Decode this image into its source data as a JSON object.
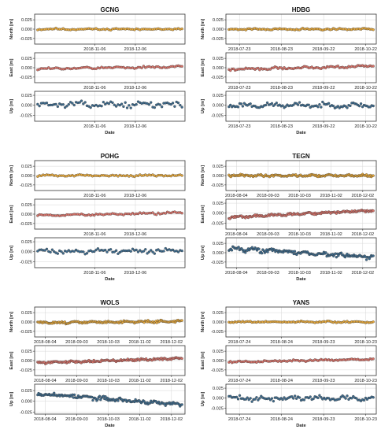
{
  "colors": {
    "north": "#e8a93a",
    "east": "#d9736a",
    "up": "#3d6b8e"
  },
  "chart_data": [
    {
      "type": "scatter",
      "title": "GCNG",
      "xlabel": "Date",
      "x_ticks": [
        "2018-11-06",
        "2018-12-06"
      ],
      "x_tick_pos": [
        0.4,
        0.67
      ],
      "panels": [
        {
          "component": "north",
          "ylabel": "North [m]",
          "ylim": [
            -0.04,
            0.04
          ],
          "yticks": [
            "0.025",
            "0.000",
            "-0.025"
          ],
          "ytick_values": [
            0.025,
            0,
            -0.025
          ],
          "series": [
            {
              "n": 80,
              "mean": 0.0,
              "amp": 0.003,
              "trend": 0.0,
              "seed": 11
            }
          ]
        },
        {
          "component": "east",
          "ylabel": "East [m]",
          "ylim": [
            -0.04,
            0.04
          ],
          "yticks": [
            "0.025",
            "0.000",
            "-0.025"
          ],
          "ytick_values": [
            0.025,
            0,
            -0.025
          ],
          "series": [
            {
              "n": 80,
              "mean": 0.0,
              "amp": 0.004,
              "trend": 0.006,
              "seed": 12
            }
          ]
        },
        {
          "component": "up",
          "ylabel": "Up [m]",
          "ylim": [
            -0.04,
            0.035
          ],
          "yticks": [
            "0.025",
            "0.000",
            "-0.025"
          ],
          "ytick_values": [
            0.025,
            0,
            -0.025
          ],
          "series": [
            {
              "n": 80,
              "mean": 0.002,
              "amp": 0.009,
              "trend": 0.0,
              "seed": 13
            }
          ]
        }
      ]
    },
    {
      "type": "scatter",
      "title": "HDBG",
      "xlabel": "Date",
      "x_ticks": [
        "2018-07-23",
        "2018-08-23",
        "2018-09-22",
        "2018-10-22"
      ],
      "x_tick_pos": [
        0.09,
        0.37,
        0.65,
        0.93
      ],
      "panels": [
        {
          "component": "north",
          "ylabel": "North [m]",
          "ylim": [
            -0.04,
            0.04
          ],
          "yticks": [
            "0.025",
            "0.000",
            "-0.025"
          ],
          "ytick_values": [
            0.025,
            0,
            -0.025
          ],
          "series": [
            {
              "n": 95,
              "mean": 0.0,
              "amp": 0.003,
              "trend": 0.0,
              "seed": 21
            }
          ]
        },
        {
          "component": "east",
          "ylabel": "East [m]",
          "ylim": [
            -0.04,
            0.04
          ],
          "yticks": [
            "0.025",
            "0.000",
            "-0.025"
          ],
          "ytick_values": [
            0.025,
            0,
            -0.025
          ],
          "series": [
            {
              "n": 95,
              "mean": 0.0,
              "amp": 0.004,
              "trend": 0.01,
              "seed": 22
            }
          ]
        },
        {
          "component": "up",
          "ylabel": "Up [m]",
          "ylim": [
            -0.04,
            0.035
          ],
          "yticks": [
            "0.025",
            "0.000",
            "-0.025"
          ],
          "ytick_values": [
            0.025,
            0,
            -0.025
          ],
          "series": [
            {
              "n": 95,
              "mean": 0.0,
              "amp": 0.008,
              "trend": 0.0,
              "seed": 23
            }
          ]
        }
      ]
    },
    {
      "type": "scatter",
      "title": "POHG",
      "xlabel": "Date",
      "x_ticks": [
        "2018-11-06",
        "2018-12-06"
      ],
      "x_tick_pos": [
        0.4,
        0.67
      ],
      "panels": [
        {
          "component": "north",
          "ylabel": "North [m]",
          "ylim": [
            -0.04,
            0.04
          ],
          "yticks": [
            "0.025",
            "0.000",
            "-0.025"
          ],
          "ytick_values": [
            0.025,
            0,
            -0.025
          ],
          "series": [
            {
              "n": 80,
              "mean": 0.0,
              "amp": 0.003,
              "trend": 0.0,
              "seed": 31
            }
          ]
        },
        {
          "component": "east",
          "ylabel": "East [m]",
          "ylim": [
            -0.04,
            0.04
          ],
          "yticks": [
            "0.025",
            "0.000",
            "-0.025"
          ],
          "ytick_values": [
            0.025,
            0,
            -0.025
          ],
          "series": [
            {
              "n": 80,
              "mean": 0.0,
              "amp": 0.004,
              "trend": 0.008,
              "seed": 32
            }
          ]
        },
        {
          "component": "up",
          "ylabel": "Up [m]",
          "ylim": [
            -0.04,
            0.035
          ],
          "yticks": [
            "0.025",
            "0.000",
            "-0.025"
          ],
          "ytick_values": [
            0.025,
            0,
            -0.025
          ],
          "series": [
            {
              "n": 80,
              "mean": 0.002,
              "amp": 0.008,
              "trend": 0.0,
              "seed": 33
            }
          ]
        }
      ]
    },
    {
      "type": "scatter",
      "title": "TEGN",
      "xlabel": "Date",
      "x_ticks": [
        "2018-08-04",
        "2018-09-03",
        "2018-10-03",
        "2018-11-02",
        "2018-12-02"
      ],
      "x_tick_pos": [
        0.07,
        0.28,
        0.49,
        0.7,
        0.91
      ],
      "panels": [
        {
          "component": "north",
          "ylabel": "North [m]",
          "ylim": [
            -0.04,
            0.04
          ],
          "yticks": [
            "0.025",
            "0.000",
            "-0.025"
          ],
          "ytick_values": [
            0.025,
            0,
            -0.025
          ],
          "series": [
            {
              "n": 150,
              "mean": 0.0,
              "amp": 0.004,
              "trend": 0.0,
              "seed": 41
            }
          ]
        },
        {
          "component": "east",
          "ylabel": "East [m]",
          "ylim": [
            -0.04,
            0.035
          ],
          "yticks": [
            "0.025",
            "0.000",
            "-0.025"
          ],
          "ytick_values": [
            0.025,
            0,
            -0.025
          ],
          "series": [
            {
              "n": 150,
              "mean": -0.002,
              "amp": 0.004,
              "trend": 0.018,
              "seed": 42
            }
          ]
        },
        {
          "component": "up",
          "ylabel": "Up [m]",
          "ylim": [
            -0.04,
            0.04
          ],
          "yticks": [
            "0.025",
            "0.000",
            "-0.025"
          ],
          "ytick_values": [
            0.025,
            0,
            -0.025
          ],
          "series": [
            {
              "n": 150,
              "mean": 0.0,
              "amp": 0.008,
              "trend": -0.025,
              "seed": 43
            }
          ]
        }
      ]
    },
    {
      "type": "scatter",
      "title": "WOLS",
      "xlabel": "Date",
      "x_ticks": [
        "2018-08-04",
        "2018-09-03",
        "2018-10-03",
        "2018-11-02",
        "2018-12-02"
      ],
      "x_tick_pos": [
        0.07,
        0.28,
        0.49,
        0.7,
        0.91
      ],
      "panels": [
        {
          "component": "north",
          "ylabel": "North [m]",
          "ylim": [
            -0.04,
            0.04
          ],
          "yticks": [
            "0.025",
            "0.000",
            "-0.025"
          ],
          "ytick_values": [
            0.025,
            0,
            -0.025
          ],
          "series": [
            {
              "n": 150,
              "mean": 0.0,
              "amp": 0.004,
              "trend": 0.004,
              "seed": 51
            }
          ]
        },
        {
          "component": "east",
          "ylabel": "East [m]",
          "ylim": [
            -0.04,
            0.04
          ],
          "yticks": [
            "0.025",
            "0.000",
            "-0.025"
          ],
          "ytick_values": [
            0.025,
            0,
            -0.025
          ],
          "series": [
            {
              "n": 150,
              "mean": 0.0,
              "amp": 0.004,
              "trend": 0.012,
              "seed": 52
            }
          ]
        },
        {
          "component": "up",
          "ylabel": "Up [m]",
          "ylim": [
            -0.03,
            0.04
          ],
          "yticks": [
            "0.025",
            "0.000",
            "-0.025"
          ],
          "ytick_values": [
            0.025,
            0,
            -0.025
          ],
          "series": [
            {
              "n": 150,
              "mean": 0.005,
              "amp": 0.006,
              "trend": -0.028,
              "seed": 53
            }
          ]
        }
      ]
    },
    {
      "type": "scatter",
      "title": "YANS",
      "xlabel": "Date",
      "x_ticks": [
        "2018-07-24",
        "2018-08-24",
        "2018-09-23",
        "2018-10-23"
      ],
      "x_tick_pos": [
        0.09,
        0.37,
        0.65,
        0.93
      ],
      "panels": [
        {
          "component": "north",
          "ylabel": "North [m]",
          "ylim": [
            -0.04,
            0.04
          ],
          "yticks": [
            "0.025",
            "0.000",
            "-0.025"
          ],
          "ytick_values": [
            0.025,
            0,
            -0.025
          ],
          "series": [
            {
              "n": 95,
              "mean": 0.0,
              "amp": 0.003,
              "trend": 0.0,
              "seed": 61
            }
          ]
        },
        {
          "component": "east",
          "ylabel": "East [m]",
          "ylim": [
            -0.04,
            0.04
          ],
          "yticks": [
            "0.025",
            "0.000",
            "-0.025"
          ],
          "ytick_values": [
            0.025,
            0,
            -0.025
          ],
          "series": [
            {
              "n": 95,
              "mean": 0.0,
              "amp": 0.003,
              "trend": 0.008,
              "seed": 62
            }
          ]
        },
        {
          "component": "up",
          "ylabel": "Up [m]",
          "ylim": [
            -0.04,
            0.035
          ],
          "yticks": [
            "0.025",
            "0.000",
            "-0.025"
          ],
          "ytick_values": [
            0.025,
            0,
            -0.025
          ],
          "series": [
            {
              "n": 95,
              "mean": 0.0,
              "amp": 0.009,
              "trend": 0.0,
              "seed": 63
            }
          ]
        }
      ]
    }
  ]
}
